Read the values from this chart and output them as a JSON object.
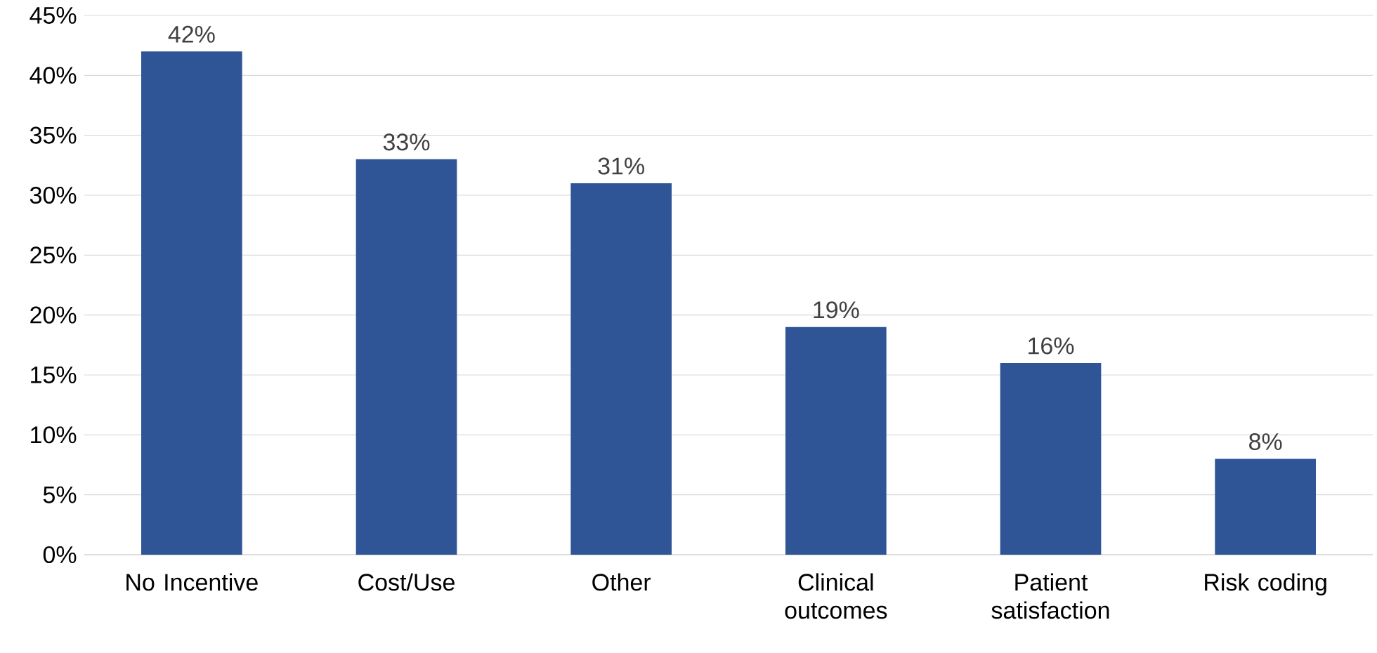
{
  "chart_data": {
    "type": "bar",
    "categories": [
      "No Incentive",
      "Cost/Use",
      "Other",
      "Clinical outcomes",
      "Patient satisfaction",
      "Risk coding"
    ],
    "values": [
      42,
      33,
      31,
      19,
      16,
      8
    ],
    "value_labels": [
      "42%",
      "33%",
      "31%",
      "19%",
      "16%",
      "8%"
    ],
    "color": "#2f5597",
    "ylim": [
      0,
      45
    ],
    "yticks": [
      {
        "value": 0,
        "label": "0%"
      },
      {
        "value": 5,
        "label": "5%"
      },
      {
        "value": 10,
        "label": "10%"
      },
      {
        "value": 15,
        "label": "15%"
      },
      {
        "value": 20,
        "label": "20%"
      },
      {
        "value": 25,
        "label": "25%"
      },
      {
        "value": 30,
        "label": "30%"
      },
      {
        "value": 35,
        "label": "35%"
      },
      {
        "value": 40,
        "label": "40%"
      },
      {
        "value": 45,
        "label": "45%"
      }
    ],
    "grid": "y"
  }
}
